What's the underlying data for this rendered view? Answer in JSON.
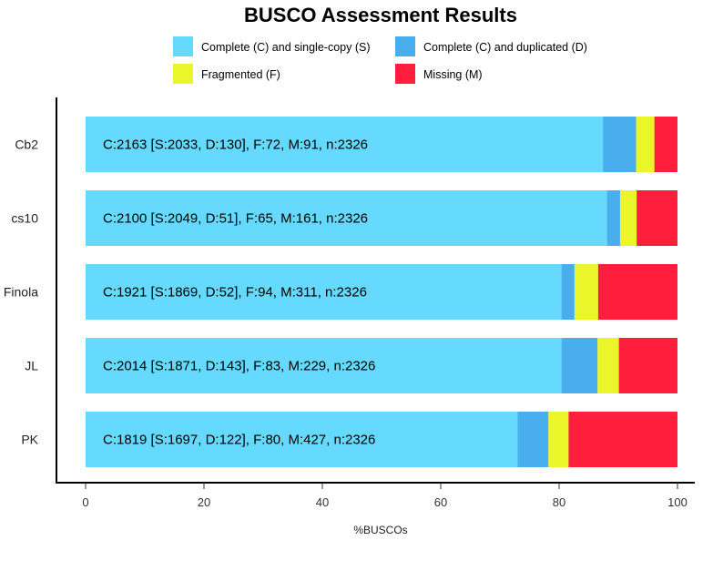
{
  "chart_data": {
    "type": "bar",
    "orientation": "horizontal",
    "stacked": true,
    "title": "BUSCO Assessment Results",
    "xlabel": "%BUSCOs",
    "ylabel": "",
    "xlim": [
      0,
      100
    ],
    "xticks": [
      "0",
      "20",
      "40",
      "60",
      "80",
      "100"
    ],
    "grid": false,
    "legend_position": "top",
    "categories": [
      "Cb2",
      "cs10",
      "Finola",
      "JL",
      "PK"
    ],
    "series": [
      {
        "name": "Complete (C) and single-copy (S)",
        "color": "#66D9FF",
        "values": [
          87.4,
          88.1,
          80.4,
          80.4,
          73.0
        ]
      },
      {
        "name": "Complete (C) and duplicated (D)",
        "color": "#48AEEE",
        "values": [
          5.6,
          2.2,
          2.2,
          6.1,
          5.2
        ]
      },
      {
        "name": "Fragmented (F)",
        "color": "#EAF52A",
        "values": [
          3.1,
          2.8,
          4.0,
          3.6,
          3.4
        ]
      },
      {
        "name": "Missing (M)",
        "color": "#FF1F3D",
        "values": [
          3.9,
          6.9,
          13.4,
          9.9,
          18.4
        ]
      }
    ],
    "bar_labels": [
      "C:2163 [S:2033, D:130], F:72, M:91, n:2326",
      "C:2100 [S:2049, D:51], F:65, M:161, n:2326",
      "C:1921 [S:1869, D:52], F:94, M:311, n:2326",
      "C:2014 [S:1871, D:143], F:83, M:229, n:2326",
      "C:1819 [S:1697, D:122], F:80, M:427, n:2326"
    ]
  }
}
